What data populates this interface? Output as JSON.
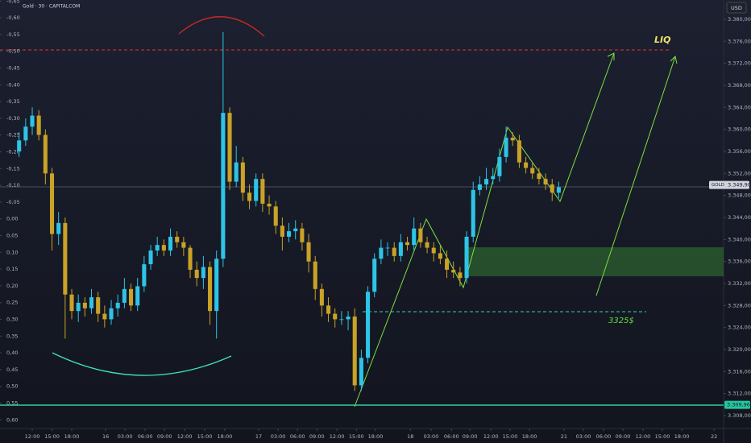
{
  "chart_data": {
    "type": "candlestick",
    "title": "Gold · 30 · CAPITALCOM",
    "currency": "USD",
    "symbol_tag": "GOLD",
    "annotations": [
      "LIQ",
      "3325$"
    ],
    "levels": [
      {
        "value": 3349.9,
        "label": "3.349,90"
      },
      {
        "value": 3309.96,
        "label": "3.309,96"
      }
    ],
    "up_color": "#2ec4e6",
    "down_color": "#c9a227",
    "xlim": [
      -9.8,
      210.1
    ],
    "ylim": [
      3305.95,
      3383.51
    ],
    "y2lim": [
      0.621,
      -0.653
    ],
    "xticks": [
      {
        "value": 0,
        "label": "12:00"
      },
      {
        "value": 6,
        "label": "15:00"
      },
      {
        "value": 12,
        "label": "18:00"
      },
      {
        "value": 22.3,
        "label": "16"
      },
      {
        "value": 28.2,
        "label": "03:00"
      },
      {
        "value": 34.3,
        "label": "06:00"
      },
      {
        "value": 40.2,
        "label": "09:00"
      },
      {
        "value": 46.3,
        "label": "12:00"
      },
      {
        "value": 52.4,
        "label": "15:00"
      },
      {
        "value": 58.5,
        "label": "18:00"
      },
      {
        "value": 68.8,
        "label": "17"
      },
      {
        "value": 74.7,
        "label": "03:00"
      },
      {
        "value": 80.6,
        "label": "06:00"
      },
      {
        "value": 86.5,
        "label": "09:00"
      },
      {
        "value": 92.6,
        "label": "12:00"
      },
      {
        "value": 98.5,
        "label": "15:00"
      },
      {
        "value": 104.3,
        "label": "18:00"
      },
      {
        "value": 114.9,
        "label": "18"
      },
      {
        "value": 121.2,
        "label": "03:00"
      },
      {
        "value": 127.4,
        "label": "06:00"
      },
      {
        "value": 133,
        "label": "09:00"
      },
      {
        "value": 139.4,
        "label": "12:00"
      },
      {
        "value": 145.2,
        "label": "15:00"
      },
      {
        "value": 151.1,
        "label": "18:00"
      },
      {
        "value": 161.6,
        "label": "21"
      },
      {
        "value": 167.5,
        "label": "03:00"
      },
      {
        "value": 173.6,
        "label": "06:00"
      },
      {
        "value": 179.5,
        "label": "09:00"
      },
      {
        "value": 185.6,
        "label": "12:00"
      },
      {
        "value": 191.5,
        "label": "15:00"
      },
      {
        "value": 197.4,
        "label": "18:00"
      },
      {
        "value": 207.2,
        "label": "22"
      }
    ],
    "yticks": [
      {
        "value": 3380,
        "label": "3.380,00"
      },
      {
        "value": 3376,
        "label": "3.376,00"
      },
      {
        "value": 3372,
        "label": "3.372,00"
      },
      {
        "value": 3368,
        "label": "3.368,00"
      },
      {
        "value": 3364,
        "label": "3.364,00"
      },
      {
        "value": 3360,
        "label": "3.360,00"
      },
      {
        "value": 3356,
        "label": "3.356,00"
      },
      {
        "value": 3352,
        "label": "3.352,00"
      },
      {
        "value": 3348,
        "label": "3.348,00"
      },
      {
        "value": 3344,
        "label": "3.344,00"
      },
      {
        "value": 3340,
        "label": "3.340,00"
      },
      {
        "value": 3336,
        "label": "3.336,00"
      },
      {
        "value": 3332,
        "label": "3.332,00"
      },
      {
        "value": 3328,
        "label": "3.328,00"
      },
      {
        "value": 3324,
        "label": "3.324,00"
      },
      {
        "value": 3320,
        "label": "3.320,00"
      },
      {
        "value": 3316,
        "label": "3.316,00"
      },
      {
        "value": 3312,
        "label": "3.312,00"
      },
      {
        "value": 3308,
        "label": "3.308,00"
      }
    ],
    "y2ticks": [
      {
        "value": -0.65,
        "label": "-0,65"
      },
      {
        "value": -0.6,
        "label": "-0,60"
      },
      {
        "value": -0.55,
        "label": "-0,55"
      },
      {
        "value": -0.5,
        "label": "-0,50"
      },
      {
        "value": -0.45,
        "label": "-0,45"
      },
      {
        "value": -0.4,
        "label": "-0,40"
      },
      {
        "value": -0.35,
        "label": "-0,35"
      },
      {
        "value": -0.3,
        "label": "-0,30"
      },
      {
        "value": -0.25,
        "label": "-0,25"
      },
      {
        "value": -0.2,
        "label": "-0,20"
      },
      {
        "value": -0.15,
        "label": "-0,15"
      },
      {
        "value": -0.1,
        "label": "-0,10"
      },
      {
        "value": -0.05,
        "label": "-0,05"
      },
      {
        "value": 0,
        "label": "0,00"
      },
      {
        "value": 0.05,
        "label": "0,05"
      },
      {
        "value": 0.1,
        "label": "0,10"
      },
      {
        "value": 0.15,
        "label": "0,15"
      },
      {
        "value": 0.2,
        "label": "0,20"
      },
      {
        "value": 0.25,
        "label": "0,25"
      },
      {
        "value": 0.3,
        "label": "0,30"
      },
      {
        "value": 0.35,
        "label": "0,35"
      },
      {
        "value": 0.4,
        "label": "0,40"
      },
      {
        "value": 0.45,
        "label": "0,45"
      },
      {
        "value": 0.5,
        "label": "0,50"
      },
      {
        "value": 0.55,
        "label": "0,55"
      },
      {
        "value": 0.6,
        "label": "0,60"
      }
    ],
    "x": [
      -4,
      -2,
      0,
      2,
      4,
      6,
      8,
      10,
      12,
      14,
      16,
      18,
      20,
      22,
      24,
      26,
      28,
      30,
      32,
      34,
      36,
      38,
      40,
      42,
      44,
      46,
      48,
      50,
      52,
      54,
      56,
      58,
      60,
      62,
      64,
      66,
      68,
      70,
      72,
      74,
      76,
      78,
      80,
      82,
      84,
      86,
      88,
      90,
      92,
      94,
      96,
      98,
      100,
      102,
      104,
      106,
      108,
      110,
      112,
      114,
      116,
      118,
      120,
      122,
      124,
      126,
      128,
      130,
      132,
      134,
      136,
      138,
      140,
      142,
      144,
      146,
      148,
      150,
      152,
      154,
      156,
      158,
      160
    ],
    "open": [
      3356.0,
      3358.0,
      3360.5,
      3362.5,
      3359.0,
      3352.0,
      3341.0,
      3343.0,
      3330.0,
      3327.0,
      3328.5,
      3327.5,
      3329.5,
      3326.5,
      3325.5,
      3327.5,
      3328.5,
      3331.0,
      3328.0,
      3331.5,
      3335.5,
      3338.0,
      3339.0,
      3338.0,
      3340.5,
      3339.5,
      3338.5,
      3334.5,
      3333.0,
      3335.0,
      3327.0,
      3336.5,
      3363.0,
      3350.5,
      3354.0,
      3348.5,
      3347.0,
      3351.0,
      3346.5,
      3346.0,
      3342.5,
      3340.5,
      3341.5,
      3342.0,
      3339.5,
      3336.0,
      3331.0,
      3328.0,
      3326.5,
      3325.5,
      3325.5,
      3326.0,
      3313.5,
      3318.5,
      3330.5,
      3336.5,
      3338.5,
      3338.5,
      3337.0,
      3339.5,
      3339.0,
      3342.0,
      3339.5,
      3338.5,
      3337.5,
      3336.5,
      3334.5,
      3334.0,
      3333.0,
      3340.5,
      3349.0,
      3350.0,
      3351.0,
      3351.5,
      3355.0,
      3358.5,
      3358.0,
      3354.0,
      3353.0,
      3352.0,
      3351.0,
      3350.0,
      3348.5
    ],
    "high": [
      3359.5,
      3362,
      3364,
      3363.5,
      3360,
      3353,
      3345,
      3344,
      3331,
      3330,
      3329.5,
      3331,
      3330.5,
      3328,
      3329,
      3330,
      3333,
      3332,
      3333,
      3337,
      3339,
      3340.5,
      3340,
      3342,
      3341.5,
      3340.5,
      3339,
      3336,
      3337,
      3336,
      3338,
      3377.7,
      3364,
      3357,
      3355,
      3350,
      3352,
      3352,
      3348,
      3347,
      3344,
      3343,
      3343.5,
      3343,
      3341,
      3337,
      3332,
      3329.5,
      3327.5,
      3327,
      3327,
      3327.5,
      3320,
      3331.5,
      3337.5,
      3340,
      3339.5,
      3339.5,
      3341,
      3340.5,
      3344,
      3343,
      3340.5,
      3339.5,
      3339,
      3338,
      3336,
      3335,
      3341.5,
      3350.5,
      3351.5,
      3353,
      3353,
      3356.5,
      3360.5,
      3359.5,
      3359,
      3355,
      3354,
      3353,
      3352,
      3351,
      3350.5
    ],
    "low": [
      3355,
      3357,
      3359,
      3358,
      3350,
      3338,
      3339,
      3322,
      3325.5,
      3325,
      3326,
      3326.5,
      3325,
      3324,
      3324.5,
      3326,
      3327.5,
      3327,
      3327,
      3330.5,
      3334.5,
      3337,
      3337,
      3337,
      3338.5,
      3337,
      3333,
      3331.5,
      3331,
      3324.5,
      3322,
      3335,
      3349,
      3349.5,
      3347,
      3345.5,
      3346,
      3345,
      3344.5,
      3341,
      3338,
      3339.5,
      3340,
      3338,
      3334,
      3329,
      3326,
      3325,
      3324,
      3324.5,
      3323.5,
      3312.5,
      3312.5,
      3317.5,
      3329.5,
      3335.5,
      3337,
      3336,
      3336,
      3338,
      3338,
      3338.5,
      3337.5,
      3336,
      3335.5,
      3333,
      3333,
      3331.5,
      3332,
      3339.5,
      3348,
      3349,
      3350,
      3350.5,
      3354,
      3357,
      3353,
      3352,
      3351,
      3350,
      3349,
      3347,
      3347.5
    ],
    "close": [
      3358.0,
      3360.5,
      3362.5,
      3359.0,
      3352.0,
      3341.0,
      3343.0,
      3330.0,
      3327.0,
      3328.5,
      3327.5,
      3329.5,
      3326.5,
      3325.5,
      3327.5,
      3328.5,
      3331.0,
      3328.0,
      3331.5,
      3335.5,
      3338.0,
      3339.0,
      3338.0,
      3340.5,
      3339.5,
      3338.5,
      3334.5,
      3333.0,
      3335.0,
      3327.0,
      3336.5,
      3363.0,
      3350.5,
      3354.0,
      3348.5,
      3347.0,
      3351.0,
      3346.5,
      3346.0,
      3342.5,
      3340.5,
      3341.5,
      3342.0,
      3339.5,
      3336.0,
      3331.0,
      3328.0,
      3326.5,
      3325.5,
      3325.5,
      3326.0,
      3313.5,
      3318.5,
      3330.5,
      3336.5,
      3338.5,
      3338.5,
      3337.0,
      3339.5,
      3339.0,
      3342.0,
      3339.5,
      3338.5,
      3337.5,
      3336.5,
      3334.5,
      3334.0,
      3333.0,
      3340.5,
      3349.0,
      3350.0,
      3351.0,
      3351.5,
      3355.0,
      3358.5,
      3358.0,
      3354.0,
      3353.0,
      3352.0,
      3351.0,
      3350.0,
      3348.5,
      3349.5
    ]
  }
}
